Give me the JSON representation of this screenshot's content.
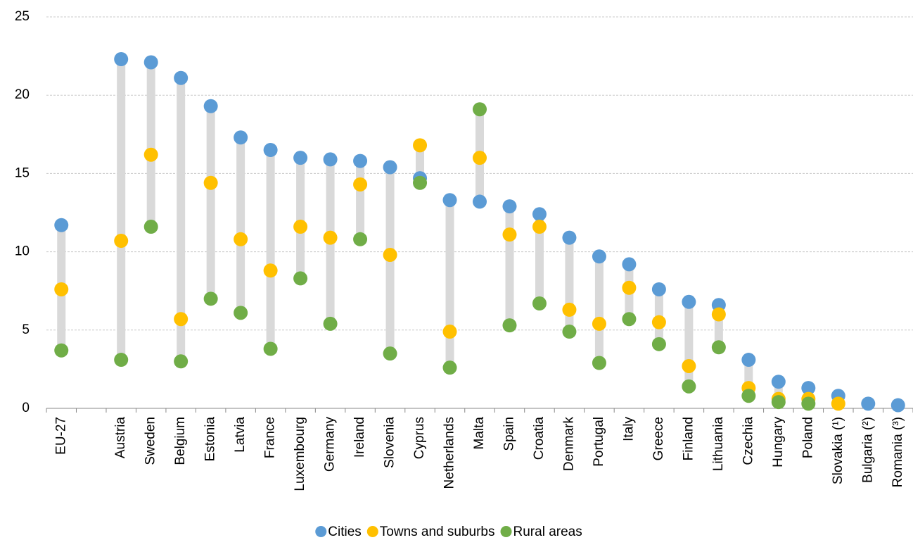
{
  "chart_data": {
    "type": "dot-range",
    "categories": [
      "EU-27",
      null,
      "Austria",
      "Sweden",
      "Belgium",
      "Estonia",
      "Latvia",
      "France",
      "Luxembourg",
      "Germany",
      "Ireland",
      "Slovenia",
      "Cyprus",
      "Netherlands",
      "Malta",
      "Spain",
      "Croatia",
      "Denmark",
      "Portugal",
      "Italy",
      "Greece",
      "Finland",
      "Lithuania",
      "Czechia",
      "Hungary",
      "Poland",
      "Slovakia (¹)",
      "Bulgaria (²)",
      "Romania (³)"
    ],
    "series": [
      {
        "name": "Cities",
        "color": "#5b9bd5",
        "values": [
          11.7,
          null,
          22.3,
          22.1,
          21.1,
          19.3,
          17.3,
          16.5,
          16.0,
          15.9,
          15.8,
          15.4,
          14.7,
          13.3,
          13.2,
          12.9,
          12.4,
          10.9,
          9.7,
          9.2,
          7.6,
          6.8,
          6.6,
          3.1,
          1.7,
          1.3,
          0.8,
          0.3,
          0.2
        ]
      },
      {
        "name": "Towns and suburbs",
        "color": "#ffc000",
        "values": [
          7.6,
          null,
          10.7,
          16.2,
          5.7,
          14.4,
          10.8,
          8.8,
          11.6,
          10.9,
          14.3,
          9.8,
          16.8,
          4.9,
          16.0,
          11.1,
          11.6,
          6.3,
          5.4,
          7.7,
          5.5,
          2.7,
          6.0,
          1.3,
          0.6,
          0.6,
          0.3,
          null,
          null
        ]
      },
      {
        "name": "Rural areas",
        "color": "#70ad47",
        "values": [
          3.7,
          null,
          3.1,
          11.6,
          3.0,
          7.0,
          6.1,
          3.8,
          8.3,
          5.4,
          10.8,
          3.5,
          14.4,
          2.6,
          19.1,
          5.3,
          6.7,
          4.9,
          2.9,
          5.7,
          4.1,
          1.4,
          3.9,
          0.8,
          0.4,
          0.3,
          null,
          null,
          null
        ]
      }
    ],
    "range_color": "#d9d9d9",
    "ylim": [
      0,
      25
    ],
    "yticks": [
      0,
      5,
      10,
      15,
      20,
      25
    ],
    "grid": true,
    "legend": "bottom"
  }
}
